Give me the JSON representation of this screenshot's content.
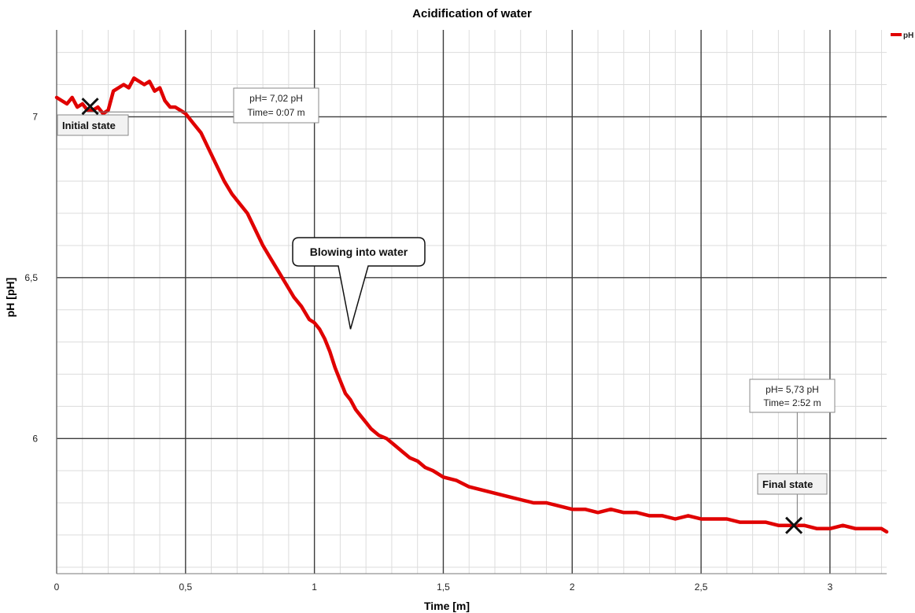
{
  "chart_data": {
    "type": "line",
    "title": "Acidification of water",
    "xlabel": "Time [m]",
    "ylabel": "pH [pH]",
    "xlim": [
      0,
      3.22
    ],
    "ylim": [
      5.58,
      7.27
    ],
    "x_ticks": [
      0,
      0.5,
      1,
      1.5,
      2,
      2.5,
      3
    ],
    "x_tick_labels": [
      "0",
      "0,5",
      "1",
      "1,5",
      "2",
      "2,5",
      "3"
    ],
    "y_ticks": [
      6,
      6.5,
      7
    ],
    "y_tick_labels": [
      "6",
      "6,5",
      "7"
    ],
    "grid": true,
    "legend_position": "top-right",
    "series": [
      {
        "name": "pH",
        "color": "#e00000",
        "x": [
          0,
          0.02,
          0.04,
          0.06,
          0.08,
          0.1,
          0.12,
          0.14,
          0.16,
          0.18,
          0.2,
          0.22,
          0.24,
          0.26,
          0.28,
          0.3,
          0.32,
          0.34,
          0.36,
          0.38,
          0.4,
          0.42,
          0.44,
          0.46,
          0.48,
          0.5,
          0.53,
          0.56,
          0.59,
          0.62,
          0.65,
          0.68,
          0.71,
          0.74,
          0.77,
          0.8,
          0.83,
          0.86,
          0.89,
          0.92,
          0.95,
          0.98,
          1.0,
          1.02,
          1.04,
          1.06,
          1.08,
          1.1,
          1.12,
          1.14,
          1.16,
          1.18,
          1.2,
          1.22,
          1.25,
          1.28,
          1.31,
          1.34,
          1.37,
          1.4,
          1.43,
          1.46,
          1.5,
          1.55,
          1.6,
          1.65,
          1.7,
          1.75,
          1.8,
          1.85,
          1.9,
          1.95,
          2.0,
          2.05,
          2.1,
          2.15,
          2.2,
          2.25,
          2.3,
          2.35,
          2.4,
          2.45,
          2.5,
          2.55,
          2.6,
          2.65,
          2.7,
          2.75,
          2.8,
          2.85,
          2.9,
          2.95,
          3.0,
          3.05,
          3.1,
          3.15,
          3.2,
          3.22
        ],
        "y": [
          7.06,
          7.05,
          7.04,
          7.06,
          7.03,
          7.04,
          7.02,
          7.02,
          7.03,
          7.01,
          7.02,
          7.08,
          7.09,
          7.1,
          7.09,
          7.12,
          7.11,
          7.1,
          7.11,
          7.08,
          7.09,
          7.05,
          7.03,
          7.03,
          7.02,
          7.01,
          6.98,
          6.95,
          6.9,
          6.85,
          6.8,
          6.76,
          6.73,
          6.7,
          6.65,
          6.6,
          6.56,
          6.52,
          6.48,
          6.44,
          6.41,
          6.37,
          6.36,
          6.34,
          6.31,
          6.27,
          6.22,
          6.18,
          6.14,
          6.12,
          6.09,
          6.07,
          6.05,
          6.03,
          6.01,
          6.0,
          5.98,
          5.96,
          5.94,
          5.93,
          5.91,
          5.9,
          5.88,
          5.87,
          5.85,
          5.84,
          5.83,
          5.82,
          5.81,
          5.8,
          5.8,
          5.79,
          5.78,
          5.78,
          5.77,
          5.78,
          5.77,
          5.77,
          5.76,
          5.76,
          5.75,
          5.76,
          5.75,
          5.75,
          5.75,
          5.74,
          5.74,
          5.74,
          5.73,
          5.73,
          5.73,
          5.72,
          5.72,
          5.73,
          5.72,
          5.72,
          5.72,
          5.71
        ]
      }
    ],
    "annotations": {
      "initial_readout": {
        "line1": "pH= 7,02 pH",
        "line2": "Time= 0:07 m",
        "x": 0.12,
        "y": 7.02
      },
      "final_readout": {
        "line1": "pH= 5,73 pH",
        "line2": "Time= 2:52 m",
        "x": 2.87,
        "y": 5.73
      },
      "initial_state": {
        "label": "Initial state",
        "x": 0.13,
        "y": 7.03
      },
      "final_state": {
        "label": "Final state",
        "x": 2.86,
        "y": 5.73
      },
      "callout": {
        "label": "Blowing into water",
        "pointer_x": 1.14,
        "pointer_y": 6.34
      }
    }
  }
}
